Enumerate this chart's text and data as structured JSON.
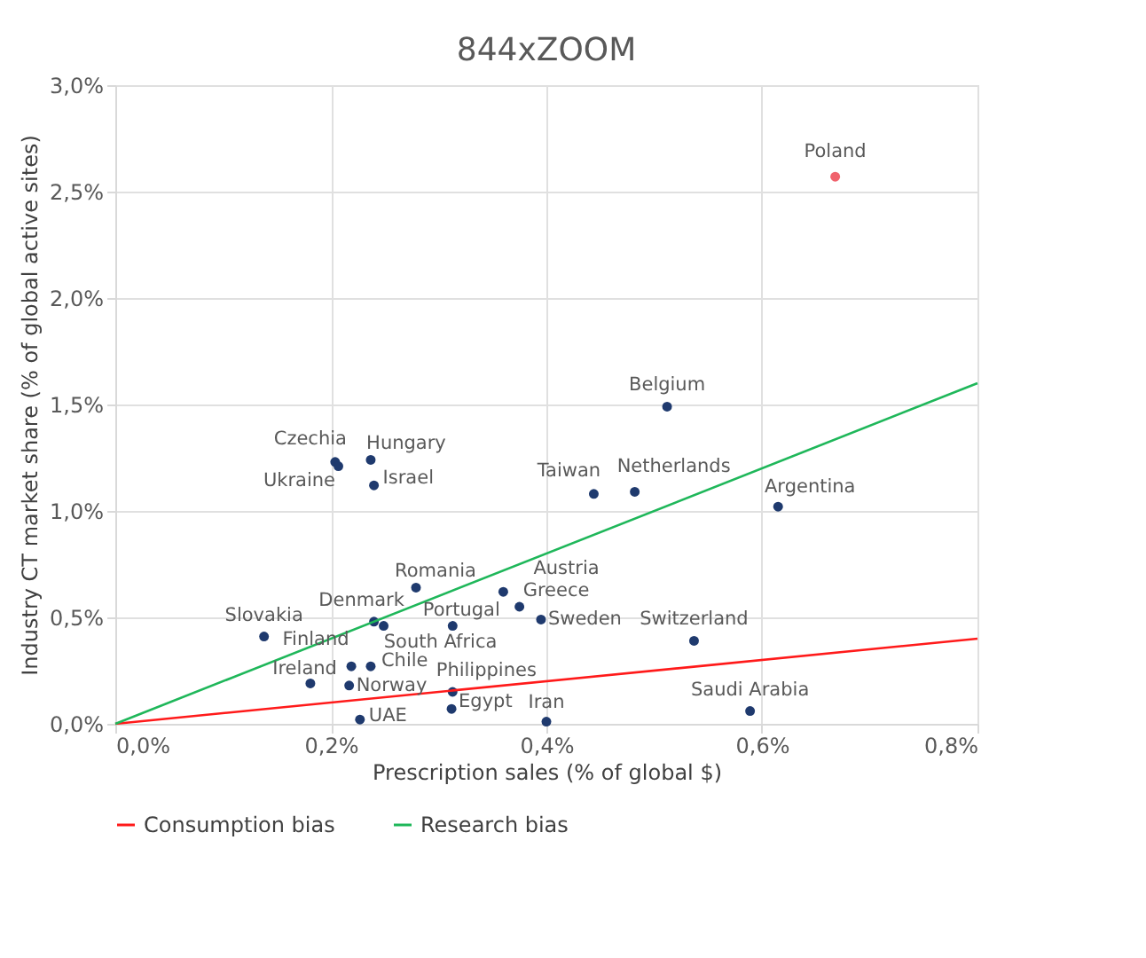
{
  "chart_data": {
    "type": "scatter",
    "title": "844xZOOM",
    "xlabel": "Prescription sales (% of global $)",
    "ylabel": "Industry CT market share (% of global active sites)",
    "xlim": [
      0,
      0.8
    ],
    "ylim": [
      0,
      3.0
    ],
    "xticks": [
      {
        "value": 0,
        "label": "0,0%"
      },
      {
        "value": 0.2,
        "label": "0,2%"
      },
      {
        "value": 0.4,
        "label": "0,4%"
      },
      {
        "value": 0.6,
        "label": "0,6%"
      },
      {
        "value": 0.8,
        "label": "0,8%"
      }
    ],
    "yticks": [
      {
        "value": 0,
        "label": "0,0%"
      },
      {
        "value": 0.5,
        "label": "0,5%"
      },
      {
        "value": 1.0,
        "label": "1,0%"
      },
      {
        "value": 1.5,
        "label": "1,5%"
      },
      {
        "value": 2.0,
        "label": "2,0%"
      },
      {
        "value": 2.5,
        "label": "2,5%"
      },
      {
        "value": 3.0,
        "label": "3,0%"
      }
    ],
    "grid": true,
    "legend": "bottom",
    "series": [
      {
        "marker": "circle",
        "x": [
          0.668,
          0.512,
          0.444,
          0.482,
          0.615,
          0.36,
          0.375,
          0.395,
          0.537,
          0.589,
          0.4,
          0.204,
          0.207,
          0.237,
          0.24,
          0.279,
          0.24,
          0.249,
          0.313,
          0.138,
          0.219,
          0.237,
          0.181,
          0.217,
          0.313,
          0.312,
          0.227
        ],
        "values": [
          2.57,
          1.49,
          1.08,
          1.09,
          1.02,
          0.62,
          0.55,
          0.49,
          0.39,
          0.06,
          0.01,
          1.23,
          1.21,
          1.24,
          1.12,
          0.64,
          0.48,
          0.46,
          0.46,
          0.41,
          0.27,
          0.27,
          0.19,
          0.18,
          0.15,
          0.07,
          0.02
        ],
        "colors": [
          "#f0626c",
          "#1f3a6e",
          "#1f3a6e",
          "#1f3a6e",
          "#1f3a6e",
          "#1f3a6e",
          "#1f3a6e",
          "#1f3a6e",
          "#1f3a6e",
          "#1f3a6e",
          "#1f3a6e",
          "#1f3a6e",
          "#1f3a6e",
          "#1f3a6e",
          "#1f3a6e",
          "#1f3a6e",
          "#1f3a6e",
          "#1f3a6e",
          "#1f3a6e",
          "#1f3a6e",
          "#1f3a6e",
          "#1f3a6e",
          "#1f3a6e",
          "#1f3a6e",
          "#1f3a6e",
          "#1f3a6e",
          "#1f3a6e"
        ]
      },
      {
        "type": "line",
        "name": "Consumption bias",
        "color": "#ff1a1a",
        "x": [
          0,
          0.8
        ],
        "values": [
          0,
          0.4
        ]
      },
      {
        "type": "line",
        "name": "Research bias",
        "color": "#1fb75a",
        "x": [
          0,
          0.8
        ],
        "values": [
          0,
          1.6
        ]
      }
    ],
    "annotations": [
      {
        "text": "Poland",
        "x": 0.668,
        "y": 2.57
      },
      {
        "text": "Belgium",
        "x": 0.512,
        "y": 1.49
      },
      {
        "text": "Taiwan",
        "x": 0.444,
        "y": 1.08
      },
      {
        "text": "Netherlands",
        "x": 0.482,
        "y": 1.09
      },
      {
        "text": "Argentina",
        "x": 0.615,
        "y": 1.02
      },
      {
        "text": "Austria",
        "x": 0.36,
        "y": 0.62
      },
      {
        "text": "Greece",
        "x": 0.375,
        "y": 0.55
      },
      {
        "text": "Sweden",
        "x": 0.395,
        "y": 0.49
      },
      {
        "text": "Switzerland",
        "x": 0.537,
        "y": 0.39
      },
      {
        "text": "Saudi Arabia",
        "x": 0.589,
        "y": 0.06
      },
      {
        "text": "Iran",
        "x": 0.4,
        "y": 0.01
      },
      {
        "text": "Czechia",
        "x": 0.204,
        "y": 1.23
      },
      {
        "text": "Ukraine",
        "x": 0.207,
        "y": 1.21
      },
      {
        "text": "Hungary",
        "x": 0.237,
        "y": 1.24
      },
      {
        "text": "Israel",
        "x": 0.24,
        "y": 1.12
      },
      {
        "text": "Romania",
        "x": 0.279,
        "y": 0.64
      },
      {
        "text": "Denmark",
        "x": 0.24,
        "y": 0.48
      },
      {
        "text": "South Africa",
        "x": 0.249,
        "y": 0.46
      },
      {
        "text": "Portugal",
        "x": 0.313,
        "y": 0.46
      },
      {
        "text": "Slovakia",
        "x": 0.138,
        "y": 0.41
      },
      {
        "text": "Finland",
        "x": 0.219,
        "y": 0.27
      },
      {
        "text": "Chile",
        "x": 0.237,
        "y": 0.27
      },
      {
        "text": "Ireland",
        "x": 0.181,
        "y": 0.19
      },
      {
        "text": "Norway",
        "x": 0.217,
        "y": 0.18
      },
      {
        "text": "Philippines",
        "x": 0.313,
        "y": 0.15
      },
      {
        "text": "Egypt",
        "x": 0.312,
        "y": 0.07
      },
      {
        "text": "UAE",
        "x": 0.227,
        "y": 0.02
      }
    ]
  }
}
